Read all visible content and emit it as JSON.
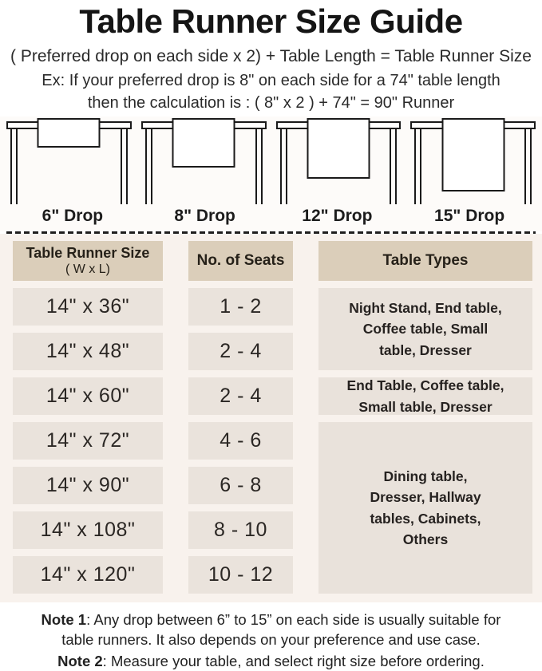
{
  "header": {
    "title": "Table Runner Size Guide",
    "formula": "( Preferred drop on each side x 2) + Table Length = Table Runner Size",
    "example_line1": "Ex: If your preferred drop is 8\" on each side for a 74\" table length",
    "example_line2": "then the calculation is : ( 8\" x 2 ) + 74\" = 90\" Runner"
  },
  "diagrams": {
    "drops": [
      {
        "label": "6\" Drop"
      },
      {
        "label": "8\" Drop"
      },
      {
        "label": "12\" Drop"
      },
      {
        "label": "15\" Drop"
      }
    ]
  },
  "table": {
    "headers": {
      "col1_line1": "Table Runner Size",
      "col1_line2": "( W x L)",
      "col2": "No. of Seats",
      "col3": "Table Types"
    },
    "rows": [
      {
        "size": "14\" x 36\"",
        "seats": "1 - 2"
      },
      {
        "size": "14\" x 48\"",
        "seats": "2 - 4"
      },
      {
        "size": "14\" x 60\"",
        "seats": "2 - 4"
      },
      {
        "size": "14\" x 72\"",
        "seats": "4 - 6"
      },
      {
        "size": "14\" x 90\"",
        "seats": "6 - 8"
      },
      {
        "size": "14\" x 108\"",
        "seats": "8 - 10"
      },
      {
        "size": "14\" x 120\"",
        "seats": "10 - 12"
      }
    ],
    "types": [
      {
        "text": "Night Stand, End table,\nCoffee table, Small\ntable, Dresser"
      },
      {
        "text": "End Table, Coffee table,\nSmall table, Dresser"
      },
      {
        "text": "Dining table,\nDresser, Hallway\ntables, Cabinets,\nOthers"
      }
    ]
  },
  "notes": {
    "note1_label": "Note 1",
    "note1_text": ": Any drop between 6” to 15” on each side is usually suitable for\ntable runners. It also depends on your preference and use case.",
    "note2_label": "Note 2",
    "note2_text": ": Measure your table, and select right size before ordering."
  },
  "colors": {
    "header_cell_bg": "#dbceba",
    "data_cell_bg": "#eae3dc",
    "table_section_bg": "#f8f2ed",
    "text": "#221e1b",
    "line_art": "#1a1a1a"
  }
}
